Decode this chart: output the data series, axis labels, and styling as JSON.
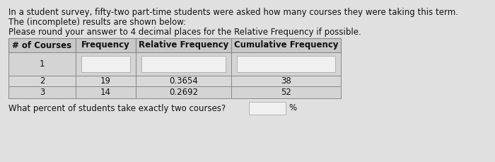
{
  "title_line1": "In a student survey, fifty-two part-time students were asked how many courses they were taking this term.",
  "title_line2": "The (incomplete) results are shown below:",
  "subtitle": "Please round your answer to 4 decimal places for the Relative Frequency if possible.",
  "headers": [
    "# of Courses",
    "Frequency",
    "Relative Frequency",
    "Cumulative Frequency"
  ],
  "row1": [
    "1",
    "",
    "",
    ""
  ],
  "row2": [
    "2",
    "19",
    "0.3654",
    "38"
  ],
  "row3": [
    "3",
    "14",
    "0.2692",
    "52"
  ],
  "question": "What percent of students take exactly two courses?",
  "background_color": "#e0e0e0",
  "header_row_bg": "#c8c8c8",
  "data_row_bg": "#d4d4d4",
  "blank_box_color": "#f0f0f0",
  "border_color": "#888888",
  "text_color": "#111111",
  "font_size": 8.5
}
